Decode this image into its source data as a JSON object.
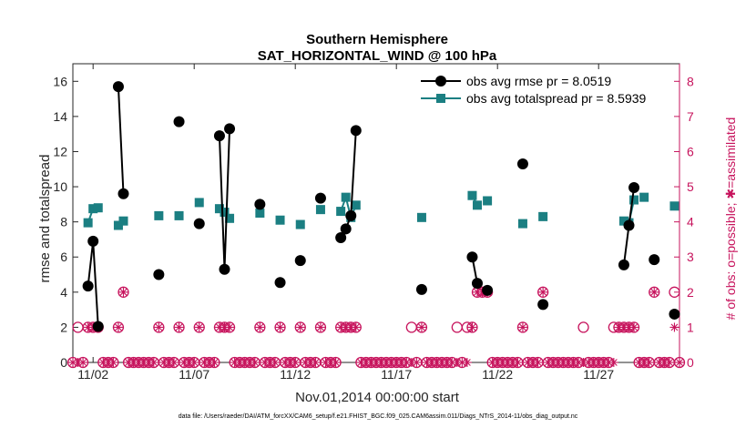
{
  "chart_data": {
    "type": "line",
    "title": "Southern Hemisphere",
    "subtitle": "SAT_HORIZONTAL_WIND @ 100 hPa",
    "xlabel": "Nov.01,2014 00:00:00 start",
    "ylabel": "rmse and totalspread",
    "ylabel_right": "# of obs: o=possible; ✱=assimilated",
    "xlim": [
      0.0,
      30.0
    ],
    "ylim": [
      0,
      17
    ],
    "ylim_right": [
      0,
      8.5
    ],
    "x_ticks": [
      1.0,
      6.0,
      11.0,
      16.0,
      21.0,
      26.0
    ],
    "x_tick_labels": [
      "11/02",
      "11/07",
      "11/12",
      "11/17",
      "11/22",
      "11/27"
    ],
    "y_ticks": [
      0,
      2,
      4,
      6,
      8,
      10,
      12,
      14,
      16
    ],
    "y_right_ticks": [
      0,
      1,
      2,
      3,
      4,
      5,
      6,
      7,
      8
    ],
    "legend_position": "top-right",
    "footer": "data file: /Users/raeder/DAI/ATM_forcXX/CAM6_setup/f.e21.FHIST_BGC.f09_025.CAM6assim.011/Diags_NTrS_2014-11/obs_diag_output.nc",
    "series": [
      {
        "name": "obs avg rmse pr = 8.0519",
        "color": "#000000",
        "marker": "circle",
        "points": [
          [
            0.75,
            4.35
          ],
          [
            1.0,
            6.9
          ],
          [
            1.25,
            2.05
          ],
          null,
          [
            2.25,
            15.7
          ],
          [
            2.5,
            9.6
          ],
          null,
          [
            4.25,
            5.0
          ],
          null,
          [
            5.25,
            13.7
          ],
          null,
          [
            6.25,
            7.9
          ],
          null,
          [
            7.25,
            12.9
          ],
          [
            7.5,
            5.3
          ],
          [
            7.75,
            13.3
          ],
          null,
          [
            9.25,
            9.0
          ],
          null,
          [
            10.25,
            4.55
          ],
          null,
          [
            11.25,
            5.8
          ],
          null,
          [
            12.25,
            9.35
          ],
          null,
          [
            13.25,
            7.1
          ],
          [
            13.5,
            7.6
          ],
          [
            13.75,
            8.35
          ],
          [
            14.0,
            13.2
          ],
          null,
          [
            17.25,
            4.15
          ],
          null,
          [
            19.75,
            6.0
          ],
          [
            20.0,
            4.5
          ],
          null,
          [
            20.5,
            4.1
          ],
          null,
          [
            22.25,
            11.3
          ],
          null,
          [
            23.25,
            3.3
          ],
          null,
          [
            27.25,
            5.55
          ],
          [
            27.5,
            7.8
          ],
          [
            27.75,
            9.95
          ],
          null,
          [
            28.75,
            5.85
          ],
          null,
          [
            29.75,
            2.75
          ]
        ]
      },
      {
        "name": "obs avg totalspread pr = 8.5939",
        "color": "#1b7f82",
        "marker": "square",
        "points": [
          [
            0.75,
            7.95
          ],
          [
            1.0,
            8.75
          ],
          [
            1.25,
            8.8
          ],
          null,
          [
            2.25,
            7.8
          ],
          [
            2.5,
            8.05
          ],
          null,
          [
            4.25,
            8.35
          ],
          null,
          [
            5.25,
            8.35
          ],
          null,
          [
            6.25,
            9.1
          ],
          null,
          [
            7.25,
            8.75
          ],
          [
            7.5,
            8.55
          ],
          [
            7.75,
            8.2
          ],
          null,
          [
            9.25,
            8.5
          ],
          null,
          [
            10.25,
            8.1
          ],
          null,
          [
            11.25,
            7.85
          ],
          null,
          [
            12.25,
            8.7
          ],
          null,
          [
            13.25,
            8.6
          ],
          [
            13.5,
            9.4
          ],
          [
            13.75,
            8.25
          ],
          [
            14.0,
            8.95
          ],
          null,
          [
            17.25,
            8.25
          ],
          null,
          [
            19.75,
            9.5
          ],
          [
            20.0,
            8.95
          ],
          null,
          [
            20.5,
            9.2
          ],
          null,
          [
            22.25,
            7.9
          ],
          null,
          [
            23.25,
            8.3
          ],
          null,
          [
            27.25,
            8.05
          ],
          [
            27.5,
            7.95
          ],
          [
            27.75,
            9.25
          ],
          null,
          [
            28.25,
            9.4
          ],
          null,
          [
            29.75,
            8.9
          ]
        ]
      }
    ],
    "obs_possible_counts": [
      [
        0.0,
        0
      ],
      [
        0.25,
        1
      ],
      [
        0.5,
        0
      ],
      [
        0.75,
        1
      ],
      [
        1.0,
        1
      ],
      [
        1.25,
        1
      ],
      [
        1.5,
        0
      ],
      [
        1.75,
        0
      ],
      [
        2.0,
        0
      ],
      [
        2.25,
        1
      ],
      [
        2.5,
        2
      ],
      [
        2.75,
        0
      ],
      [
        3.0,
        0
      ],
      [
        3.25,
        0
      ],
      [
        3.5,
        0
      ],
      [
        3.75,
        0
      ],
      [
        4.0,
        0
      ],
      [
        4.25,
        1
      ],
      [
        4.5,
        0
      ],
      [
        4.75,
        0
      ],
      [
        5.0,
        0
      ],
      [
        5.25,
        1
      ],
      [
        5.5,
        0
      ],
      [
        5.75,
        0
      ],
      [
        6.0,
        0
      ],
      [
        6.25,
        1
      ],
      [
        6.5,
        0
      ],
      [
        6.75,
        0
      ],
      [
        7.0,
        0
      ],
      [
        7.25,
        1
      ],
      [
        7.5,
        1
      ],
      [
        7.75,
        1
      ],
      [
        8.0,
        0
      ],
      [
        8.25,
        0
      ],
      [
        8.5,
        0
      ],
      [
        8.75,
        0
      ],
      [
        9.0,
        0
      ],
      [
        9.25,
        1
      ],
      [
        9.5,
        0
      ],
      [
        9.75,
        0
      ],
      [
        10.0,
        0
      ],
      [
        10.25,
        1
      ],
      [
        10.5,
        0
      ],
      [
        10.75,
        0
      ],
      [
        11.0,
        0
      ],
      [
        11.25,
        1
      ],
      [
        11.5,
        0
      ],
      [
        11.75,
        0
      ],
      [
        12.0,
        0
      ],
      [
        12.25,
        1
      ],
      [
        12.5,
        0
      ],
      [
        12.75,
        0
      ],
      [
        13.0,
        0
      ],
      [
        13.25,
        1
      ],
      [
        13.5,
        1
      ],
      [
        13.75,
        1
      ],
      [
        14.0,
        1
      ],
      [
        14.25,
        0
      ],
      [
        14.5,
        0
      ],
      [
        14.75,
        0
      ],
      [
        15.0,
        0
      ],
      [
        15.25,
        0
      ],
      [
        15.5,
        0
      ],
      [
        15.75,
        0
      ],
      [
        16.0,
        0
      ],
      [
        16.25,
        0
      ],
      [
        16.5,
        0
      ],
      [
        16.75,
        1
      ],
      [
        17.0,
        0
      ],
      [
        17.25,
        1
      ],
      [
        17.5,
        0
      ],
      [
        17.75,
        0
      ],
      [
        18.0,
        0
      ],
      [
        18.25,
        0
      ],
      [
        18.5,
        0
      ],
      [
        18.75,
        0
      ],
      [
        19.0,
        1
      ],
      [
        19.25,
        0
      ],
      [
        19.5,
        1
      ],
      [
        19.75,
        1
      ],
      [
        20.0,
        2
      ],
      [
        20.25,
        2
      ],
      [
        20.5,
        2
      ],
      [
        20.75,
        0
      ],
      [
        21.0,
        0
      ],
      [
        21.25,
        0
      ],
      [
        21.5,
        0
      ],
      [
        21.75,
        0
      ],
      [
        22.0,
        0
      ],
      [
        22.25,
        1
      ],
      [
        22.5,
        0
      ],
      [
        22.75,
        0
      ],
      [
        23.0,
        0
      ],
      [
        23.25,
        2
      ],
      [
        23.5,
        0
      ],
      [
        23.75,
        0
      ],
      [
        24.0,
        0
      ],
      [
        24.25,
        0
      ],
      [
        24.5,
        0
      ],
      [
        24.75,
        0
      ],
      [
        25.0,
        0
      ],
      [
        25.25,
        1
      ],
      [
        25.5,
        0
      ],
      [
        25.75,
        0
      ],
      [
        26.0,
        0
      ],
      [
        26.25,
        0
      ],
      [
        26.5,
        0
      ],
      [
        26.75,
        1
      ],
      [
        27.0,
        1
      ],
      [
        27.25,
        1
      ],
      [
        27.5,
        1
      ],
      [
        27.75,
        1
      ],
      [
        28.0,
        0
      ],
      [
        28.25,
        0
      ],
      [
        28.5,
        0
      ],
      [
        28.75,
        2
      ],
      [
        29.0,
        0
      ],
      [
        29.25,
        0
      ],
      [
        29.5,
        0
      ],
      [
        29.75,
        2
      ],
      [
        30.0,
        0
      ]
    ],
    "obs_assimilated_counts": [
      [
        0.0,
        0
      ],
      [
        0.25,
        0
      ],
      [
        0.5,
        0
      ],
      [
        0.75,
        1
      ],
      [
        1.0,
        1
      ],
      [
        1.25,
        1
      ],
      [
        1.5,
        0
      ],
      [
        1.75,
        0
      ],
      [
        2.0,
        0
      ],
      [
        2.25,
        1
      ],
      [
        2.5,
        2
      ],
      [
        2.75,
        0
      ],
      [
        3.0,
        0
      ],
      [
        3.25,
        0
      ],
      [
        3.5,
        0
      ],
      [
        3.75,
        0
      ],
      [
        4.0,
        0
      ],
      [
        4.25,
        1
      ],
      [
        4.5,
        0
      ],
      [
        4.75,
        0
      ],
      [
        5.0,
        0
      ],
      [
        5.25,
        1
      ],
      [
        5.5,
        0
      ],
      [
        5.75,
        0
      ],
      [
        6.0,
        0
      ],
      [
        6.25,
        1
      ],
      [
        6.5,
        0
      ],
      [
        6.75,
        0
      ],
      [
        7.0,
        0
      ],
      [
        7.25,
        1
      ],
      [
        7.5,
        1
      ],
      [
        7.75,
        1
      ],
      [
        8.0,
        0
      ],
      [
        8.25,
        0
      ],
      [
        8.5,
        0
      ],
      [
        8.75,
        0
      ],
      [
        9.0,
        0
      ],
      [
        9.25,
        1
      ],
      [
        9.5,
        0
      ],
      [
        9.75,
        0
      ],
      [
        10.0,
        0
      ],
      [
        10.25,
        1
      ],
      [
        10.5,
        0
      ],
      [
        10.75,
        0
      ],
      [
        11.0,
        0
      ],
      [
        11.25,
        1
      ],
      [
        11.5,
        0
      ],
      [
        11.75,
        0
      ],
      [
        12.0,
        0
      ],
      [
        12.25,
        1
      ],
      [
        12.5,
        0
      ],
      [
        12.75,
        0
      ],
      [
        13.0,
        0
      ],
      [
        13.25,
        1
      ],
      [
        13.5,
        1
      ],
      [
        13.75,
        1
      ],
      [
        14.0,
        1
      ],
      [
        14.25,
        0
      ],
      [
        14.5,
        0
      ],
      [
        14.75,
        0
      ],
      [
        15.0,
        0
      ],
      [
        15.25,
        0
      ],
      [
        15.5,
        0
      ],
      [
        15.75,
        0
      ],
      [
        16.0,
        0
      ],
      [
        16.25,
        0
      ],
      [
        16.5,
        0
      ],
      [
        16.75,
        0
      ],
      [
        17.0,
        0
      ],
      [
        17.25,
        1
      ],
      [
        17.5,
        0
      ],
      [
        17.75,
        0
      ],
      [
        18.0,
        0
      ],
      [
        18.25,
        0
      ],
      [
        18.5,
        0
      ],
      [
        18.75,
        0
      ],
      [
        19.0,
        0
      ],
      [
        19.25,
        0
      ],
      [
        19.5,
        0
      ],
      [
        19.75,
        1
      ],
      [
        20.0,
        2
      ],
      [
        20.25,
        2
      ],
      [
        20.5,
        2
      ],
      [
        20.75,
        0
      ],
      [
        21.0,
        0
      ],
      [
        21.25,
        0
      ],
      [
        21.5,
        0
      ],
      [
        21.75,
        0
      ],
      [
        22.0,
        0
      ],
      [
        22.25,
        1
      ],
      [
        22.5,
        0
      ],
      [
        22.75,
        0
      ],
      [
        23.0,
        0
      ],
      [
        23.25,
        2
      ],
      [
        23.5,
        0
      ],
      [
        23.75,
        0
      ],
      [
        24.0,
        0
      ],
      [
        24.25,
        0
      ],
      [
        24.5,
        0
      ],
      [
        24.75,
        0
      ],
      [
        25.0,
        0
      ],
      [
        25.25,
        0
      ],
      [
        25.5,
        0
      ],
      [
        25.75,
        0
      ],
      [
        26.0,
        0
      ],
      [
        26.25,
        0
      ],
      [
        26.5,
        0
      ],
      [
        26.75,
        0
      ],
      [
        27.0,
        1
      ],
      [
        27.25,
        1
      ],
      [
        27.5,
        1
      ],
      [
        27.75,
        1
      ],
      [
        28.0,
        0
      ],
      [
        28.25,
        0
      ],
      [
        28.5,
        0
      ],
      [
        28.75,
        2
      ],
      [
        29.0,
        0
      ],
      [
        29.25,
        0
      ],
      [
        29.5,
        0
      ],
      [
        29.75,
        1
      ],
      [
        30.0,
        0
      ]
    ]
  },
  "colors": {
    "rmse": "#000000",
    "spread": "#1b7f82",
    "obs": "#c7145d",
    "axis": "#262626"
  }
}
